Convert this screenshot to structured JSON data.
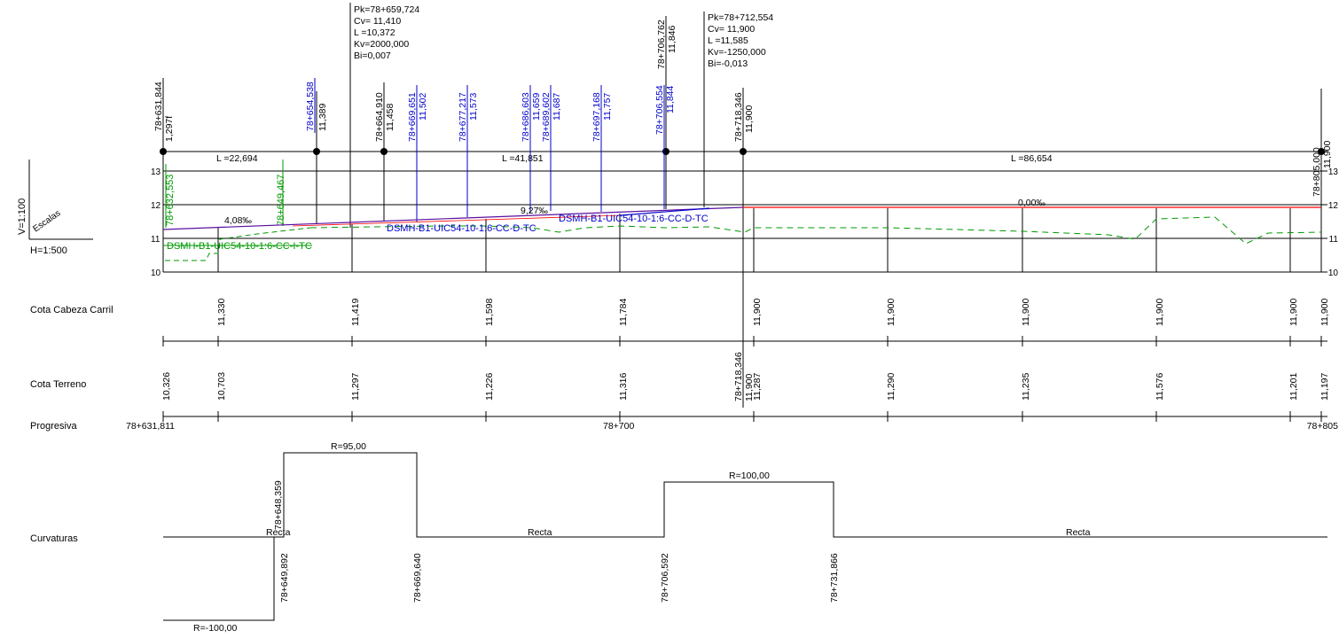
{
  "scales": {
    "v": "V=1:100",
    "h": "H=1:500",
    "title": "Escalas"
  },
  "elevation_labels": [
    "13",
    "12",
    "11",
    "10"
  ],
  "elevation_labels_right": [
    "13",
    "12",
    "11",
    "10"
  ],
  "row_titles": {
    "rail": "Cota Cabeza Carril",
    "terrain": "Cota Terreno",
    "progresiva": "Progresiva",
    "curvaturas": "Curvaturas"
  },
  "vertical_curves": [
    {
      "pk": "Pk=78+659,724",
      "cv": "Cv=  11,410",
      "l": "L =10,372",
      "kv": "Kv=2000,000",
      "bi": "Bi=0,007"
    },
    {
      "pk": "Pk=78+712,554",
      "cv": "Cv=  11,900",
      "l": "L =11,585",
      "kv": "Kv=-1250,000",
      "bi": "Bi=-0,013"
    }
  ],
  "black_markers": [
    {
      "pk": "78+631,844",
      "cota": "1,297f"
    },
    {
      "pk": "78+654,538",
      "cota": "11,389"
    },
    {
      "pk": "78+664,910",
      "cota": "11,458"
    },
    {
      "pk": "78+706,762",
      "cota": "11,846"
    },
    {
      "pk": "78+718,346",
      "cota": "11,900"
    },
    {
      "pk": "78+805,000",
      "cota": "11,900"
    }
  ],
  "blue_markers": [
    {
      "pk": "78+654,538",
      "cota": ""
    },
    {
      "pk": "78+669,651",
      "cota": "11,502"
    },
    {
      "pk": "78+677,217",
      "cota": "11,573"
    },
    {
      "pk": "78+686,603",
      "cota": "11,659"
    },
    {
      "pk": "78+689,602",
      "cota": "11,687"
    },
    {
      "pk": "78+697,168",
      "cota": "11,757"
    },
    {
      "pk": "78+706,554",
      "cota": "11,844"
    }
  ],
  "green_labels": {
    "pk1": "78+632,553",
    "pk2": "78+649,467",
    "device_left": "DSMH-B1-UIC54-10-1:6-CC-I-TC"
  },
  "blue_labels": {
    "device_1": "DSMH-B1-UIC54-10-1:6-CC-D-TC",
    "device_2": "DSMH-B1-UIC54-10-1:6-CC-D-TC"
  },
  "segments": {
    "l1": "L =22,694",
    "l2": "L =41,851",
    "l3": "L =86,654"
  },
  "slopes": {
    "s1": "4,08‰",
    "s2": "9,27‰",
    "s3": "0,00‰"
  },
  "rail_values": [
    "11,330",
    "11,419",
    "11,598",
    "11,784",
    "11,900",
    "11,900",
    "11,900",
    "11,900",
    "11,900",
    "11,900"
  ],
  "rail_marker": {
    "pk": "78+718,346",
    "cota": "11,900"
  },
  "terrain_values": [
    "10,326",
    "10,703",
    "11,297",
    "11,226",
    "11,316",
    "11,287",
    "11,290",
    "11,235",
    "11,576",
    "11,201",
    "11,197"
  ],
  "progresiva": {
    "start": "78+631,811",
    "mid": "78+700",
    "end": "78+805"
  },
  "curvatures": {
    "radii": [
      "R=95,00",
      "R=100,00",
      "R=-100,00"
    ],
    "recta_labels": [
      "Recta",
      "Recta",
      "Recta"
    ],
    "points": [
      "78+648,359",
      "78+649,892",
      "78+669,640",
      "78+706,592",
      "78+731,866"
    ]
  },
  "colors": {
    "line": "#000000",
    "blue": "#0000cc",
    "green": "#009900",
    "red": "#ff0000",
    "purple": "#5a10a0"
  }
}
